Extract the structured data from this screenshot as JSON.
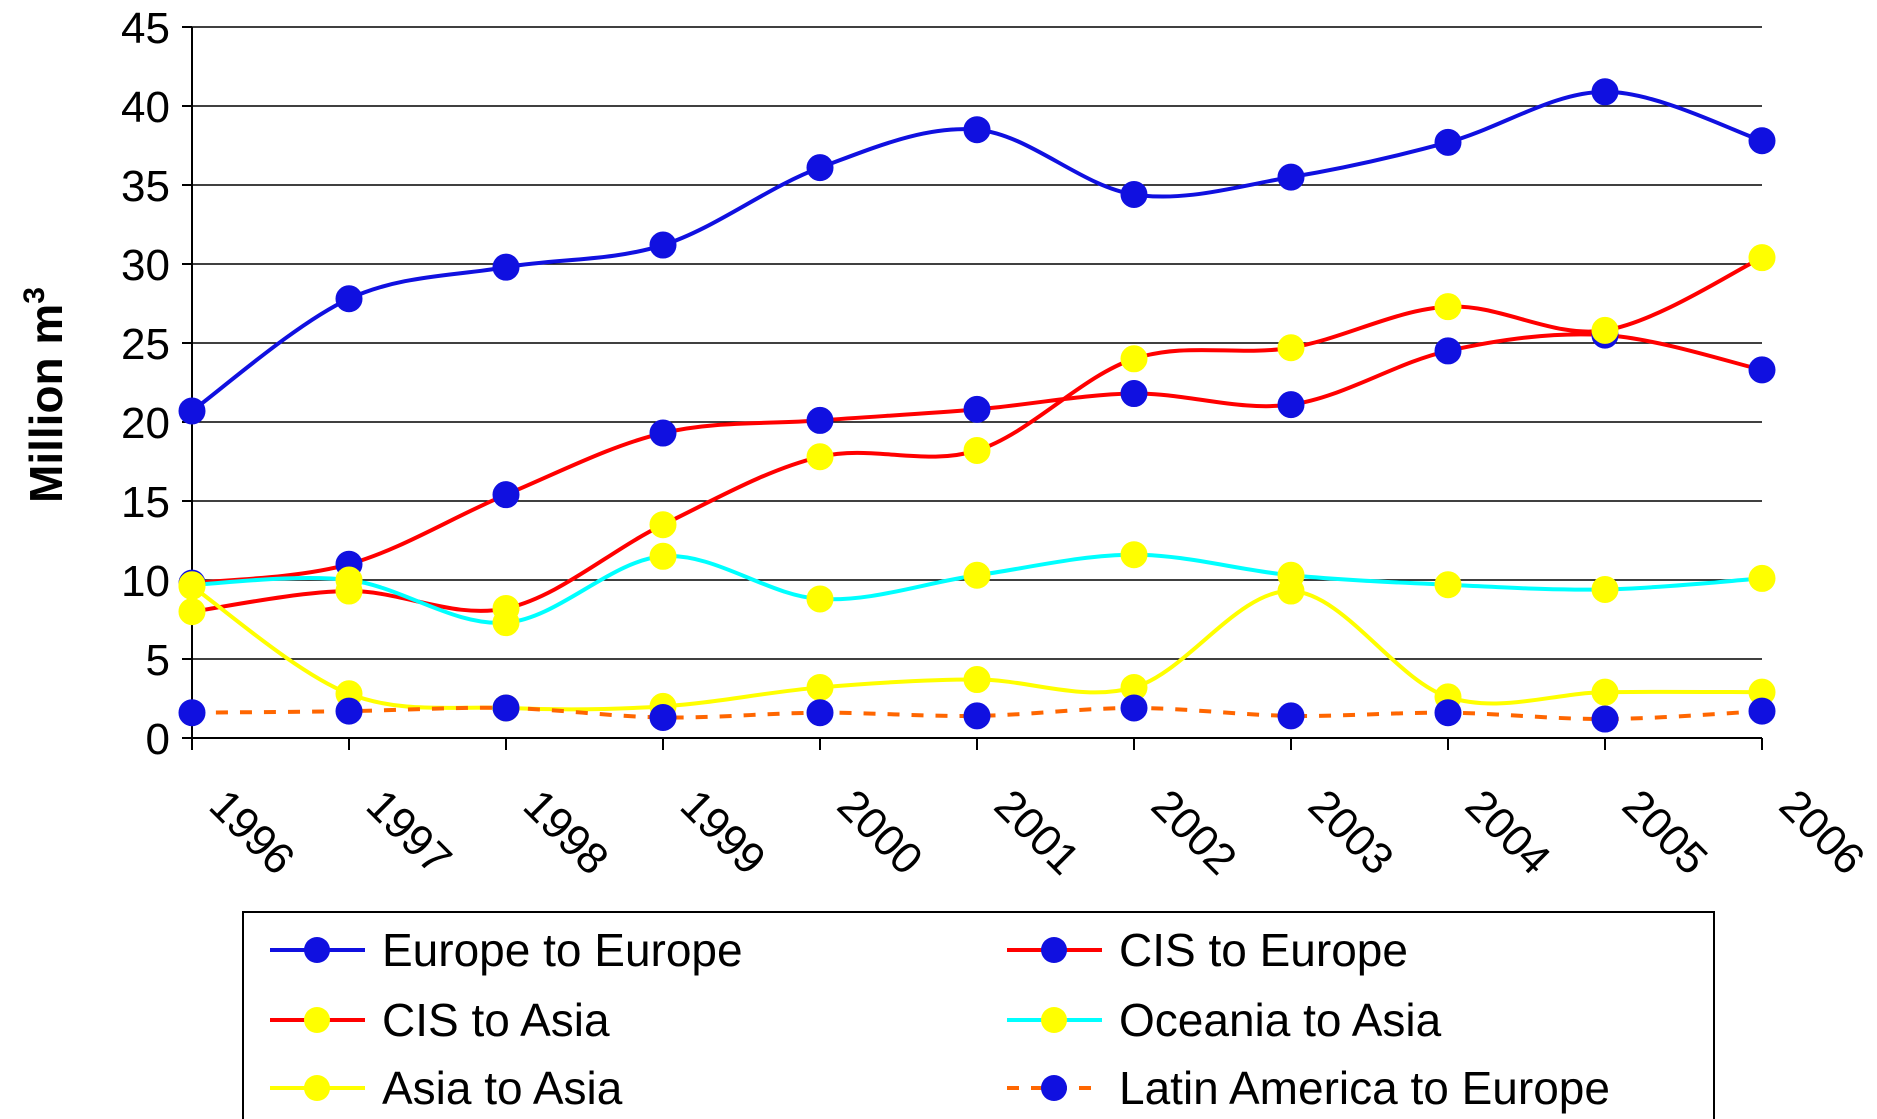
{
  "chart_data": {
    "type": "line",
    "title": "",
    "xlabel": "",
    "ylabel": "Million m",
    "ylabel_superscript": "3",
    "ylim": [
      0,
      45
    ],
    "yticks": [
      0,
      5,
      10,
      15,
      20,
      25,
      30,
      35,
      40,
      45
    ],
    "grid": "horizontal",
    "legend_position": "bottom",
    "categories": [
      "1996",
      "1997",
      "1998",
      "1999",
      "2000",
      "2001",
      "2002",
      "2003",
      "2004",
      "2005",
      "2006"
    ],
    "series": [
      {
        "name": "Europe to Europe",
        "line_color": "#1010e0",
        "marker_color": "#1010e0",
        "dashed": false,
        "values": [
          20.7,
          27.8,
          29.8,
          31.2,
          36.1,
          38.5,
          34.4,
          35.5,
          37.7,
          40.9,
          37.8
        ]
      },
      {
        "name": "CIS to Europe",
        "line_color": "#ff0000",
        "marker_color": "#1010e0",
        "dashed": false,
        "values": [
          9.8,
          11.0,
          15.4,
          19.3,
          20.1,
          20.8,
          21.8,
          21.1,
          24.5,
          25.5,
          23.3
        ]
      },
      {
        "name": "CIS to Asia",
        "line_color": "#ff0000",
        "marker_color": "#ffff00",
        "dashed": false,
        "values": [
          8.0,
          9.3,
          8.2,
          13.5,
          17.8,
          18.2,
          24.0,
          24.7,
          27.3,
          25.8,
          30.4
        ]
      },
      {
        "name": "Oceania to Asia",
        "line_color": "#00ffff",
        "marker_color": "#ffff00",
        "dashed": false,
        "values": [
          9.7,
          10.0,
          7.3,
          11.5,
          8.8,
          10.3,
          11.6,
          10.3,
          9.7,
          9.4,
          10.1
        ]
      },
      {
        "name": "Asia to Asia",
        "line_color": "#ffff00",
        "marker_color": "#ffff00",
        "dashed": false,
        "values": [
          9.6,
          2.8,
          1.9,
          2.0,
          3.2,
          3.7,
          3.2,
          9.3,
          2.6,
          2.9,
          2.9
        ]
      },
      {
        "name": "Latin America to Europe",
        "line_color": "#ff6600",
        "marker_color": "#1010e0",
        "dashed": true,
        "values": [
          1.6,
          1.7,
          1.9,
          1.3,
          1.6,
          1.4,
          1.9,
          1.4,
          1.6,
          1.2,
          1.7
        ]
      }
    ]
  }
}
